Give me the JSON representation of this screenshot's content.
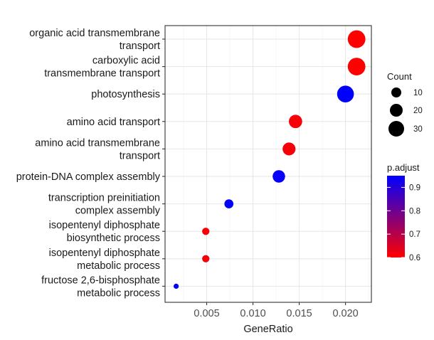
{
  "chart_data": {
    "type": "scatter",
    "title": "",
    "xlabel": "GeneRatio",
    "ylabel": "",
    "xlim": [
      0.0005,
      0.0228
    ],
    "xticks": [
      0.005,
      0.01,
      0.015,
      0.02
    ],
    "xtick_labels": [
      "0.005",
      "0.010",
      "0.015",
      "0.020"
    ],
    "grid": true,
    "categories": [
      "organic acid transmembrane transport",
      "carboxylic acid transmembrane transport",
      "photosynthesis",
      "amino acid transport",
      "amino acid transmembrane transport",
      "protein-DNA complex assembly",
      "transcription preinitiation complex assembly",
      "isopentenyl diphosphate biosynthetic process",
      "isopentenyl diphosphate metabolic process",
      "fructose 2,6-bisphosphate metabolic process"
    ],
    "category_label_lines": [
      [
        "organic acid transmembrane",
        "transport"
      ],
      [
        "carboxylic acid",
        "transmembrane transport"
      ],
      [
        "photosynthesis"
      ],
      [
        "amino acid transport"
      ],
      [
        "amino acid transmembrane",
        "transport"
      ],
      [
        "protein-DNA complex assembly"
      ],
      [
        "transcription preinitiation",
        "complex assembly"
      ],
      [
        "isopentenyl diphosphate",
        "biosynthetic process"
      ],
      [
        "isopentenyl diphosphate",
        "metabolic process"
      ],
      [
        "fructose 2,6-bisphosphate",
        "metabolic process"
      ]
    ],
    "points": [
      {
        "category": "organic acid transmembrane transport",
        "gene_ratio": 0.0212,
        "count": 31,
        "p_adjust": 0.6
      },
      {
        "category": "carboxylic acid transmembrane transport",
        "gene_ratio": 0.0212,
        "count": 31,
        "p_adjust": 0.6
      },
      {
        "category": "photosynthesis",
        "gene_ratio": 0.02,
        "count": 29,
        "p_adjust": 0.95
      },
      {
        "category": "amino acid transport",
        "gene_ratio": 0.0146,
        "count": 21,
        "p_adjust": 0.61
      },
      {
        "category": "amino acid transmembrane transport",
        "gene_ratio": 0.0139,
        "count": 20,
        "p_adjust": 0.61
      },
      {
        "category": "protein-DNA complex assembly",
        "gene_ratio": 0.0128,
        "count": 19,
        "p_adjust": 0.94
      },
      {
        "category": "transcription preinitiation complex assembly",
        "gene_ratio": 0.0074,
        "count": 11,
        "p_adjust": 0.95
      },
      {
        "category": "isopentenyl diphosphate biosynthetic process",
        "gene_ratio": 0.0049,
        "count": 7,
        "p_adjust": 0.61
      },
      {
        "category": "isopentenyl diphosphate metabolic process",
        "gene_ratio": 0.0049,
        "count": 7,
        "p_adjust": 0.61
      },
      {
        "category": "fructose 2,6-bisphosphate metabolic process",
        "gene_ratio": 0.0017,
        "count": 2,
        "p_adjust": 0.95
      }
    ],
    "legend": {
      "position": "right",
      "size": {
        "title": "Count",
        "values": [
          10,
          20,
          30
        ],
        "labels": [
          "10",
          "20",
          "30"
        ]
      },
      "color": {
        "title": "p.adjust",
        "range": [
          0.6,
          0.95
        ],
        "ticks": [
          0.6,
          0.7,
          0.8,
          0.9
        ],
        "tick_labels": [
          "0.6",
          "0.7",
          "0.8",
          "0.9"
        ],
        "low_color": "#ff0000",
        "high_color": "#0000ff"
      }
    }
  }
}
